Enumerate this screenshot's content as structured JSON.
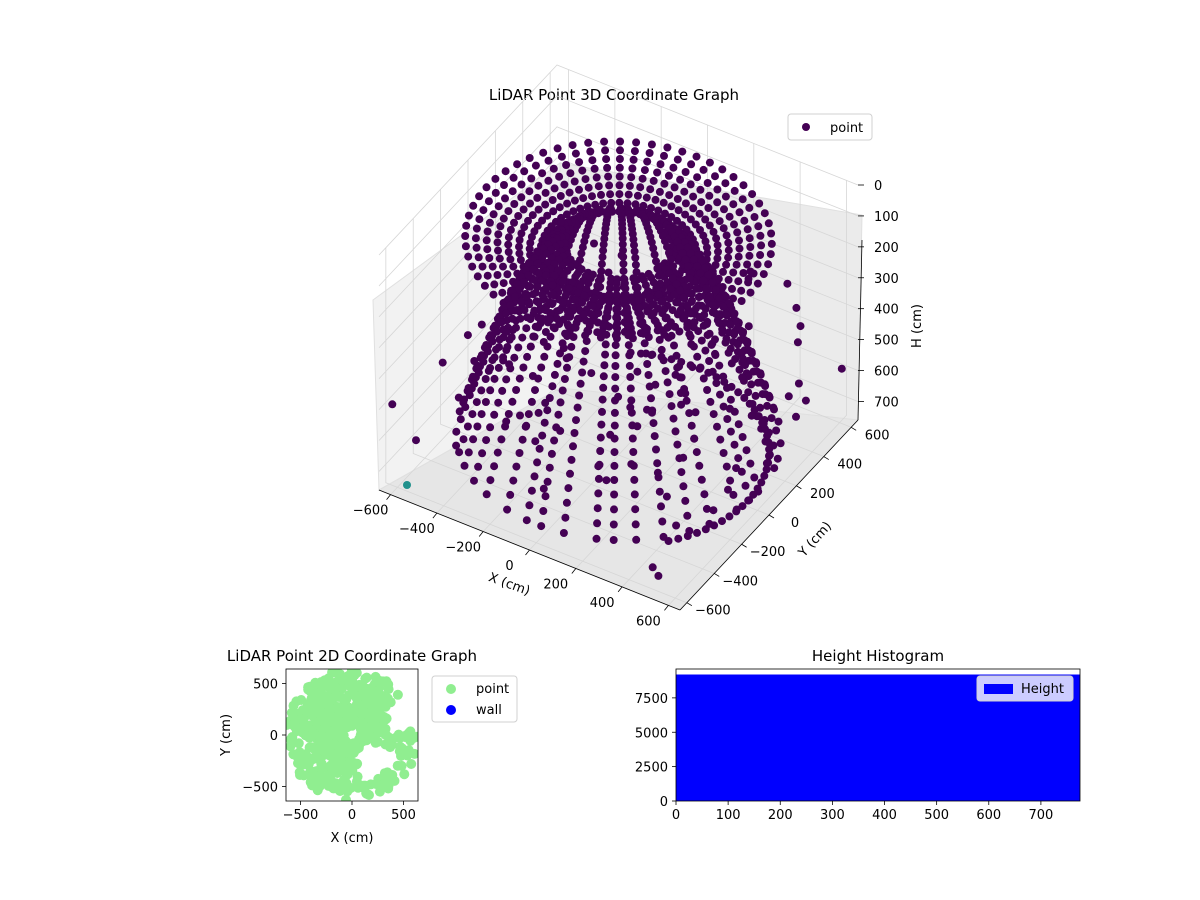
{
  "chart_data": [
    {
      "type": "scatter",
      "projection": "3d",
      "title": "LiDAR Point 3D Coordinate Graph",
      "xlabel": "X (cm)",
      "ylabel": "Y (cm)",
      "zlabel": "H (cm)",
      "xlim": [
        -650,
        650
      ],
      "ylim": [
        -650,
        650
      ],
      "zlim": [
        760,
        0
      ],
      "zaxis_inverted": true,
      "x_ticks": [
        "−600",
        "−400",
        "−200",
        "0",
        "200",
        "400",
        "600"
      ],
      "y_ticks": [
        "−600",
        "−400",
        "−200",
        "0",
        "200",
        "400",
        "600"
      ],
      "z_ticks": [
        "0",
        "100",
        "200",
        "300",
        "400",
        "500",
        "600",
        "700"
      ],
      "grid": true,
      "legend": {
        "entries": [
          "point"
        ],
        "placement": "upper-right"
      },
      "colors": {
        "point": "#440154",
        "outlier": "#21918c"
      },
      "description_shape": "dome-shaped arcs of points: rings near the top (H≈0–100) and curves descending to the floor (H≈700)",
      "series": [
        {
          "name": "point",
          "color": "#440154"
        }
      ]
    },
    {
      "type": "scatter",
      "title": "LiDAR Point 2D Coordinate Graph",
      "xlabel": "X (cm)",
      "ylabel": "Y (cm)",
      "xlim": [
        -640,
        640
      ],
      "ylim": [
        -640,
        640
      ],
      "x_ticks": [
        "−500",
        "0",
        "500"
      ],
      "y_ticks": [
        "−500",
        "0",
        "500"
      ],
      "legend": {
        "entries": [
          "point",
          "wall"
        ],
        "placement": "outside-right"
      },
      "series": [
        {
          "name": "point",
          "color": "#90ee90"
        },
        {
          "name": "wall",
          "color": "#0000ff",
          "values": []
        }
      ]
    },
    {
      "type": "bar",
      "title": "Height Histogram",
      "xlim": [
        0,
        775
      ],
      "ylim": [
        0,
        9600
      ],
      "x_ticks": [
        "0",
        "100",
        "200",
        "300",
        "400",
        "500",
        "600",
        "700"
      ],
      "y_ticks": [
        "0",
        "2500",
        "5000",
        "7500"
      ],
      "legend": {
        "entries": [
          "Height"
        ],
        "placement": "upper-right"
      },
      "series": [
        {
          "name": "Height",
          "color": "#0000ff",
          "bins": [
            [
              0,
              775
            ]
          ],
          "counts": [
            9200
          ]
        }
      ]
    }
  ]
}
